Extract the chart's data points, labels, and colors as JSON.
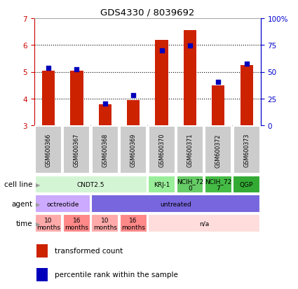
{
  "title": "GDS4330 / 8039692",
  "samples": [
    "GSM600366",
    "GSM600367",
    "GSM600368",
    "GSM600369",
    "GSM600370",
    "GSM600371",
    "GSM600372",
    "GSM600373"
  ],
  "red_values": [
    5.05,
    5.05,
    3.78,
    3.95,
    6.2,
    6.55,
    4.5,
    5.25
  ],
  "blue_values": [
    5.15,
    5.08,
    3.82,
    4.12,
    5.8,
    5.98,
    4.62,
    5.3
  ],
  "ylim": [
    3,
    7
  ],
  "yticks_left": [
    3,
    4,
    5,
    6,
    7
  ],
  "yticks_right": [
    0,
    25,
    50,
    75,
    100
  ],
  "ytick_right_labels": [
    "0",
    "25",
    "50",
    "75",
    "100%"
  ],
  "cell_line_groups": [
    {
      "label": "CNDT2.5",
      "span": [
        0,
        4
      ],
      "color": "#d4f5d4"
    },
    {
      "label": "KRJ-1",
      "span": [
        4,
        5
      ],
      "color": "#99ee99"
    },
    {
      "label": "NCIH_72\n0",
      "span": [
        5,
        6
      ],
      "color": "#66cc66"
    },
    {
      "label": "NCIH_72\n7",
      "span": [
        6,
        7
      ],
      "color": "#44bb44"
    },
    {
      "label": "QGP",
      "span": [
        7,
        8
      ],
      "color": "#33aa33"
    }
  ],
  "agent_groups": [
    {
      "label": "octreotide",
      "span": [
        0,
        2
      ],
      "color": "#ccaaff"
    },
    {
      "label": "untreated",
      "span": [
        2,
        8
      ],
      "color": "#7766dd"
    }
  ],
  "time_groups": [
    {
      "label": "10\nmonths",
      "span": [
        0,
        1
      ],
      "color": "#ffaaaa"
    },
    {
      "label": "16\nmonths",
      "span": [
        1,
        2
      ],
      "color": "#ff8888"
    },
    {
      "label": "10\nmonths",
      "span": [
        2,
        3
      ],
      "color": "#ffaaaa"
    },
    {
      "label": "16\nmonths",
      "span": [
        3,
        4
      ],
      "color": "#ff8888"
    },
    {
      "label": "n/a",
      "span": [
        4,
        8
      ],
      "color": "#ffdddd"
    }
  ],
  "row_labels": [
    "cell line",
    "agent",
    "time"
  ],
  "legend_red": "transformed count",
  "legend_blue": "percentile rank within the sample",
  "bar_color": "#cc2200",
  "dot_color": "#0000bb",
  "left_axis_color": "#cc0000",
  "right_axis_color": "#0000cc",
  "sample_box_color": "#cccccc"
}
